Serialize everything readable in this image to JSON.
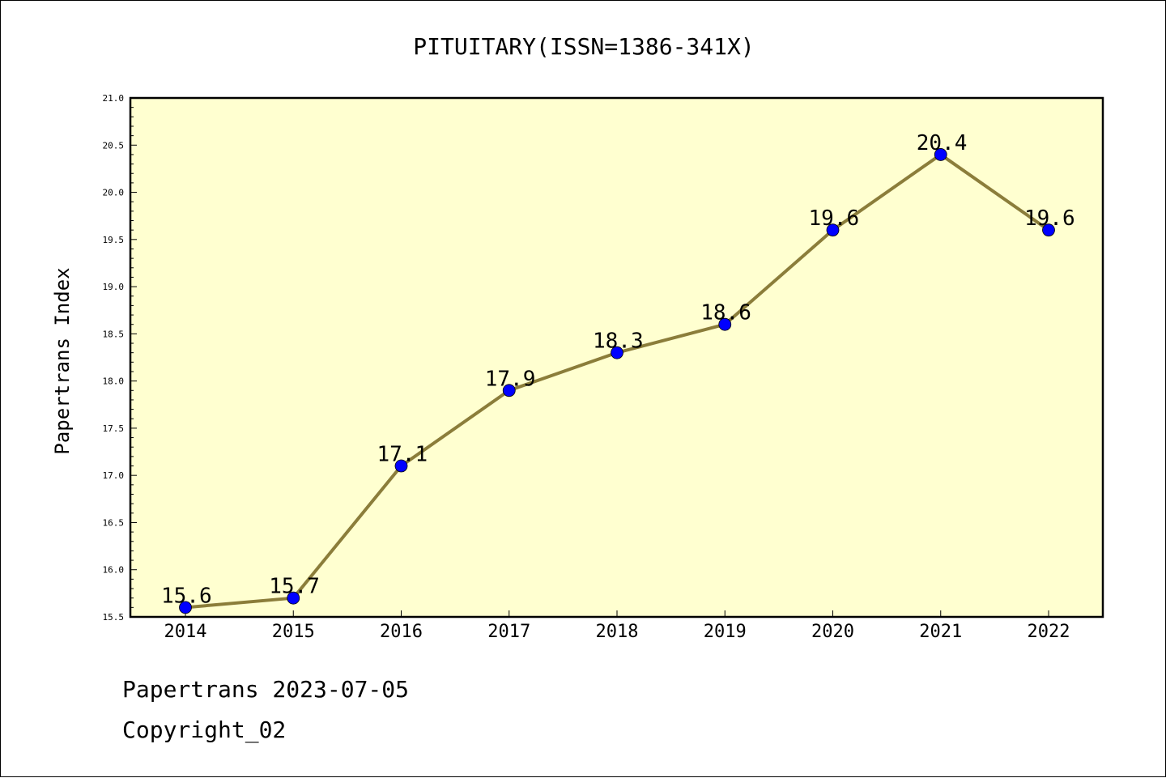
{
  "chart_data": {
    "type": "line",
    "title": "PITUITARY(ISSN=1386-341X)",
    "xlabel": "",
    "ylabel": "Papertrans Index",
    "categories": [
      "2014",
      "2015",
      "2016",
      "2017",
      "2018",
      "2019",
      "2020",
      "2021",
      "2022"
    ],
    "values": [
      15.6,
      15.7,
      17.1,
      17.9,
      18.3,
      18.6,
      19.6,
      20.4,
      19.6
    ],
    "data_labels": [
      "15.6",
      "15.7",
      "17.1",
      "17.9",
      "18.3",
      "18.6",
      "19.6",
      "20.4",
      "19.6"
    ],
    "ylim": [
      15.5,
      21.0
    ],
    "yticks": [
      "15.5",
      "16.0",
      "16.5",
      "17.0",
      "17.5",
      "18.0",
      "18.5",
      "19.0",
      "19.5",
      "20.0",
      "20.5",
      "21.0"
    ],
    "grid": false,
    "legend": "none",
    "colors": {
      "line": "#8b7d3a",
      "marker": "#0000ff",
      "plot_background": "#ffffd0"
    }
  },
  "footer": {
    "line1": "Papertrans 2023-07-05",
    "line2": "Copyright_02"
  }
}
